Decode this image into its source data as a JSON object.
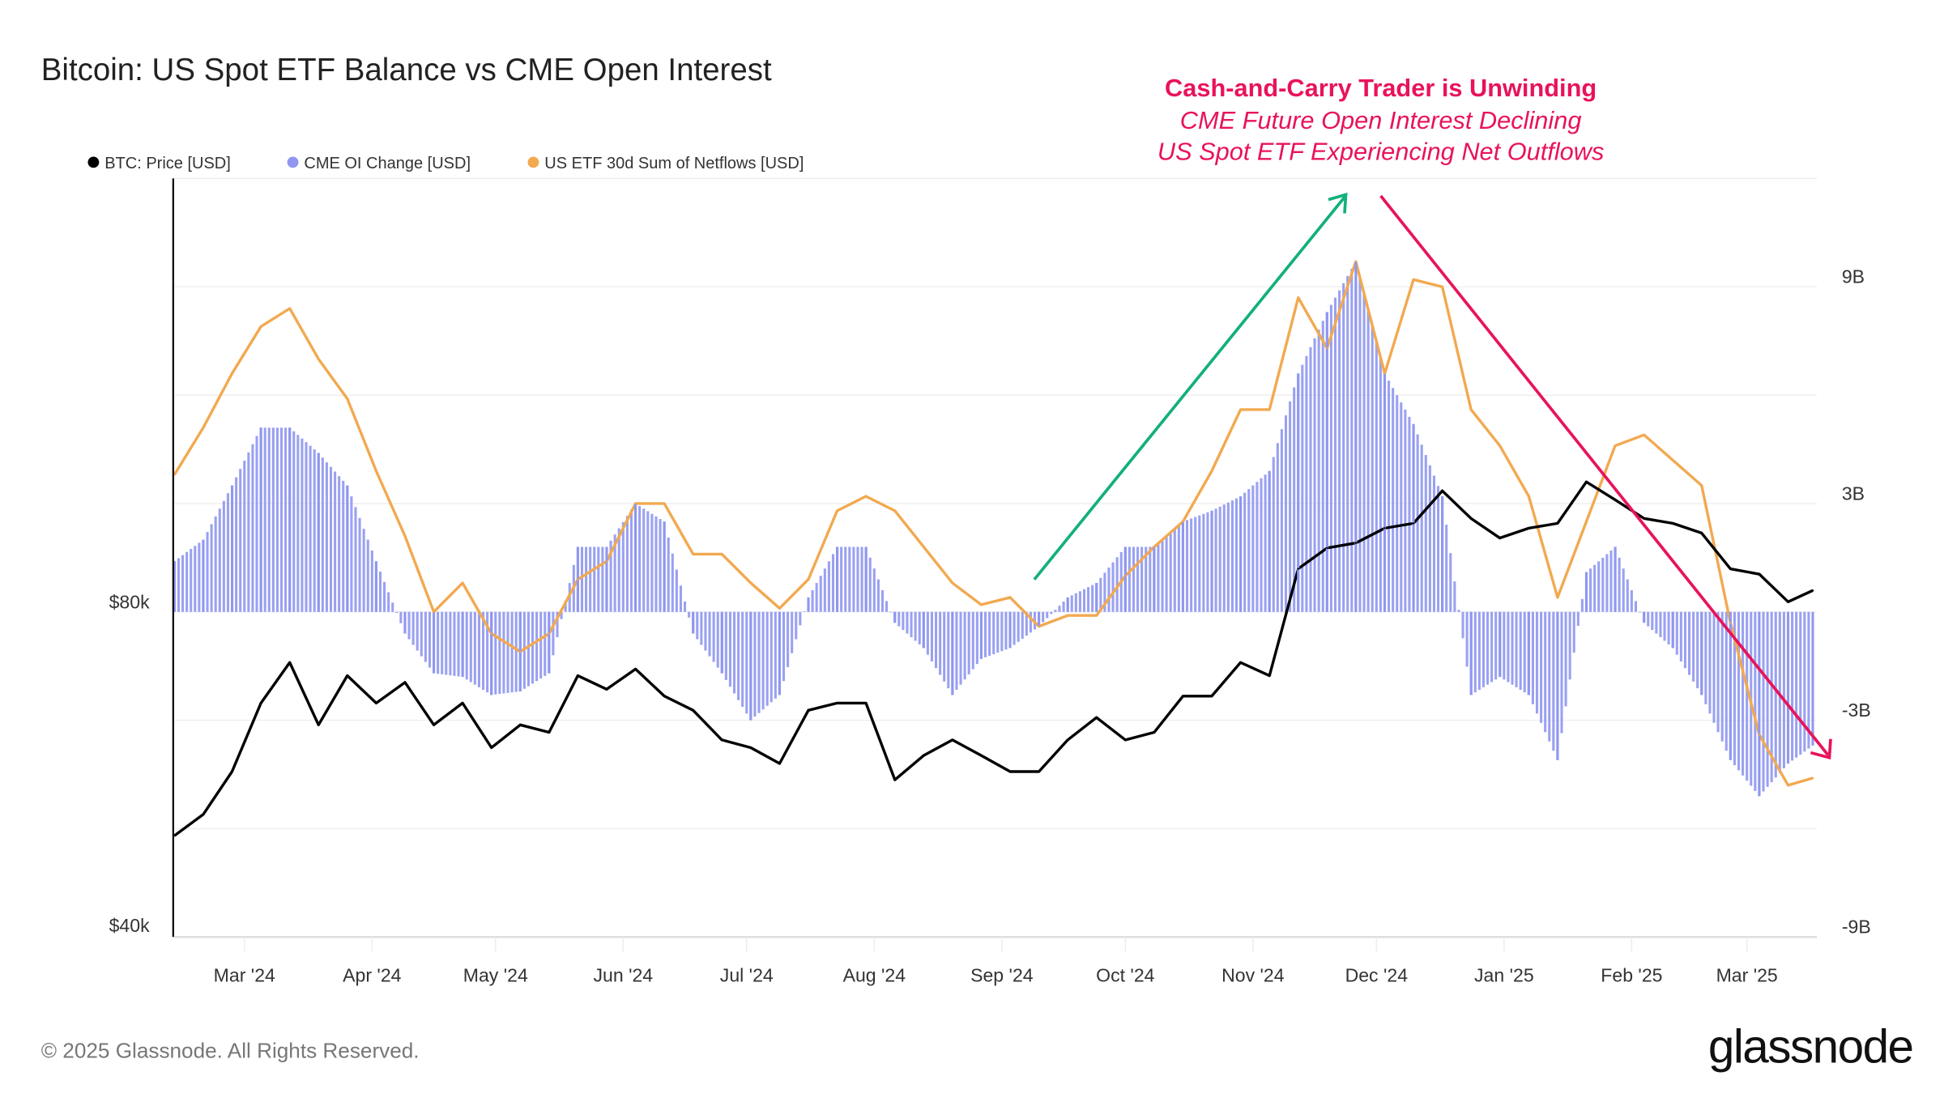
{
  "chart_data": {
    "type": "bar+line",
    "title": "Bitcoin: US Spot ETF Balance vs CME Open Interest",
    "legend_placement": "top-left",
    "legend": [
      {
        "name": "BTC: Price [USD]",
        "color": "#000000"
      },
      {
        "name": "CME OI Change [USD]",
        "color": "#8f97f0"
      },
      {
        "name": "US ETF 30d Sum of Netflows [USD]",
        "color": "#f2a950"
      }
    ],
    "x_tick_labels": [
      "Mar '24",
      "Apr '24",
      "May '24",
      "Jun '24",
      "Jul '24",
      "Aug '24",
      "Sep '24",
      "Oct '24",
      "Nov '24",
      "Dec '24",
      "Jan '25",
      "Feb '25",
      "Mar '25"
    ],
    "x_ticks": [
      "2024-03-01",
      "2024-04-01",
      "2024-05-01",
      "2024-06-01",
      "2024-07-01",
      "2024-08-01",
      "2024-09-01",
      "2024-10-01",
      "2024-11-01",
      "2024-12-01",
      "2025-01-01",
      "2025-02-01",
      "2025-03-01"
    ],
    "xlim": [
      "2024-02-13",
      "2025-03-18"
    ],
    "left_axis": {
      "scale": "log",
      "ylim": [
        40000,
        203000
      ],
      "tick_values": [
        80000,
        40000
      ],
      "tick_labels": [
        "$80k",
        "$40k"
      ]
    },
    "right_axis": {
      "unit": "B",
      "ylim": [
        -9,
        12
      ],
      "tick_values": [
        9,
        3,
        -3,
        -9
      ],
      "tick_labels": [
        "9B",
        "3B",
        "-3B",
        "-9B"
      ],
      "grid_values": [
        9,
        6,
        3,
        0,
        -3,
        -6,
        -9
      ]
    },
    "grid": true,
    "x": [
      "2024-02-13",
      "2024-02-20",
      "2024-02-27",
      "2024-03-05",
      "2024-03-12",
      "2024-03-19",
      "2024-03-26",
      "2024-04-02",
      "2024-04-09",
      "2024-04-16",
      "2024-04-23",
      "2024-04-30",
      "2024-05-07",
      "2024-05-14",
      "2024-05-21",
      "2024-05-28",
      "2024-06-04",
      "2024-06-11",
      "2024-06-18",
      "2024-06-25",
      "2024-07-02",
      "2024-07-09",
      "2024-07-16",
      "2024-07-23",
      "2024-07-30",
      "2024-08-06",
      "2024-08-13",
      "2024-08-20",
      "2024-08-27",
      "2024-09-03",
      "2024-09-10",
      "2024-09-17",
      "2024-09-24",
      "2024-10-01",
      "2024-10-08",
      "2024-10-15",
      "2024-10-22",
      "2024-10-29",
      "2024-11-05",
      "2024-11-12",
      "2024-11-19",
      "2024-11-26",
      "2024-12-03",
      "2024-12-10",
      "2024-12-17",
      "2024-12-24",
      "2024-12-31",
      "2025-01-07",
      "2025-01-14",
      "2025-01-21",
      "2025-01-28",
      "2025-02-04",
      "2025-02-11",
      "2025-02-18",
      "2025-02-25",
      "2025-03-04",
      "2025-03-11",
      "2025-03-17"
    ],
    "series": [
      {
        "name": "BTC: Price [USD]",
        "axis": "left",
        "kind": "line",
        "color": "#000000",
        "values": [
          49700,
          52000,
          57000,
          66000,
          72000,
          63000,
          70000,
          66000,
          69000,
          63000,
          66000,
          60000,
          63000,
          62000,
          70000,
          68000,
          71000,
          67000,
          65000,
          61000,
          60000,
          58000,
          65000,
          66000,
          66000,
          56000,
          59000,
          61000,
          59000,
          57000,
          57000,
          61000,
          64000,
          61000,
          62000,
          67000,
          67000,
          72000,
          70000,
          88000,
          92000,
          93000,
          96000,
          97000,
          104000,
          98000,
          94000,
          96000,
          97000,
          106000,
          102000,
          98000,
          97000,
          95000,
          88000,
          87000,
          82000,
          84000
        ]
      },
      {
        "name": "CME OI Change [USD]",
        "axis": "right",
        "kind": "bar",
        "unit": "B",
        "color": "#8f97f0",
        "values": [
          1.4,
          2.0,
          3.5,
          5.1,
          5.1,
          4.4,
          3.5,
          1.4,
          -0.6,
          -1.7,
          -1.8,
          -2.3,
          -2.2,
          -1.7,
          1.8,
          1.8,
          3.0,
          2.5,
          -0.6,
          -1.7,
          -3.0,
          -2.3,
          0.4,
          1.8,
          1.8,
          -0.3,
          -1.0,
          -2.3,
          -1.3,
          -1.0,
          -0.4,
          0.4,
          0.8,
          1.8,
          1.8,
          2.5,
          2.8,
          3.2,
          3.9,
          6.6,
          8.3,
          9.7,
          6.6,
          5.2,
          3.2,
          -2.3,
          -1.8,
          -2.3,
          -4.1,
          1.1,
          1.8,
          -0.3,
          -1.0,
          -2.3,
          -4.1,
          -5.1,
          -4.2,
          -3.7
        ]
      },
      {
        "name": "US ETF 30d Sum of Netflows [USD]",
        "axis": "right",
        "kind": "line",
        "unit": "B",
        "color": "#f2a950",
        "values": [
          3.8,
          5.1,
          6.6,
          7.9,
          8.4,
          7.0,
          5.9,
          3.9,
          2.1,
          0,
          0.8,
          -0.6,
          -1.1,
          -0.6,
          0.9,
          1.4,
          3.0,
          3.0,
          1.6,
          1.6,
          0.8,
          0.1,
          0.9,
          2.8,
          3.2,
          2.8,
          1.8,
          0.8,
          0.2,
          0.4,
          -0.4,
          -0.1,
          -0.1,
          1.0,
          1.8,
          2.5,
          3.9,
          5.6,
          5.6,
          8.7,
          7.3,
          9.7,
          6.6,
          9.2,
          9.0,
          5.6,
          4.6,
          3.2,
          0.4,
          2.5,
          4.6,
          4.9,
          4.2,
          3.5,
          -0.3,
          -3.4,
          -4.8,
          -4.6
        ]
      }
    ],
    "annotations": {
      "headline": "Cash-and-Carry Trader is Unwinding",
      "line1": "CME Future Open Interest Declining",
      "line2": "US Spot ETF Experiencing Net Outflows",
      "headline_color": "#e8135a",
      "up_arrow_color": "#12b07a",
      "down_arrow_color": "#e8135a"
    }
  },
  "footer": {
    "copyright": "© 2025 Glassnode. All Rights Reserved.",
    "logo": "glassnode"
  }
}
